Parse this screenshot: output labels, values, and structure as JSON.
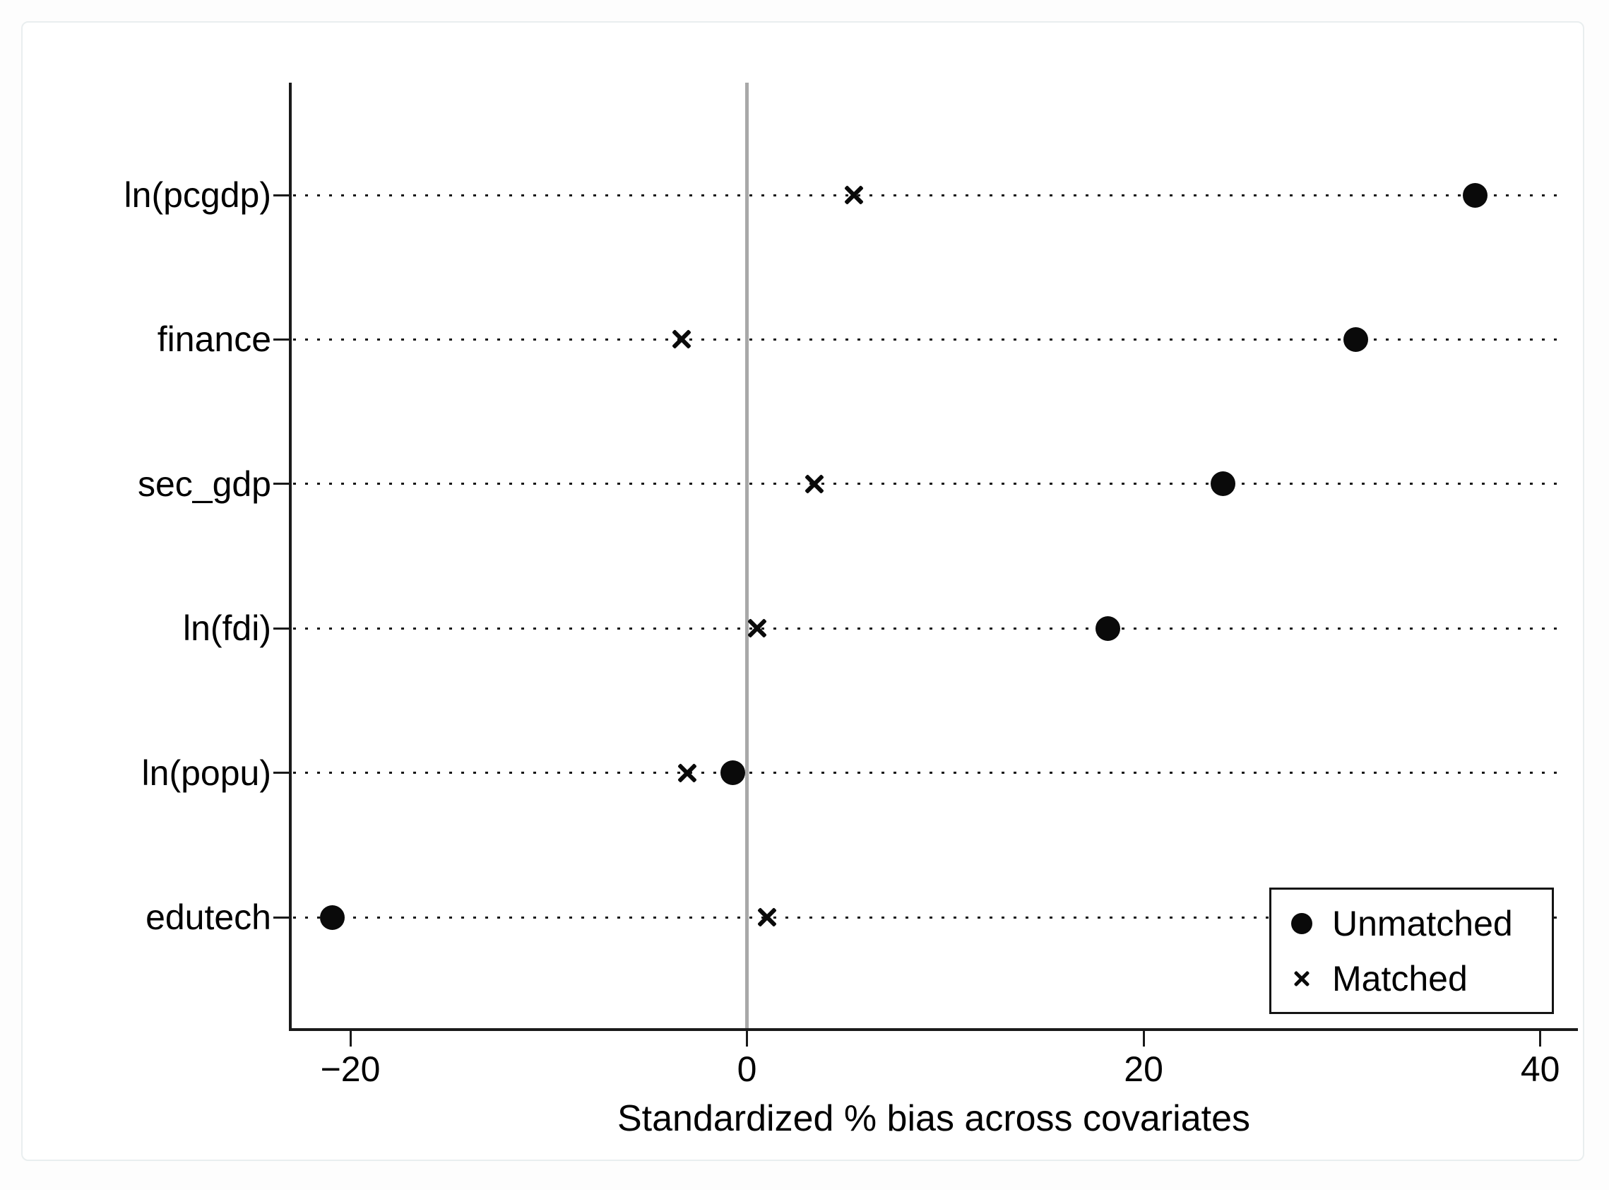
{
  "chart_data": {
    "type": "scatter",
    "title": "",
    "xlabel": "Standardized % bias across covariates",
    "ylabel": "",
    "categories": [
      "ln(pcgdp)",
      "finance",
      "sec_gdp",
      "ln(fdi)",
      "ln(popu)",
      "edutech"
    ],
    "series": [
      {
        "name": "Unmatched",
        "marker": "circle",
        "values": [
          36.7,
          30.7,
          24.0,
          18.2,
          -0.7,
          -20.9
        ]
      },
      {
        "name": "Matched",
        "marker": "x",
        "values": [
          5.4,
          -3.3,
          3.4,
          0.5,
          -3.0,
          1.0
        ]
      }
    ],
    "x_ticks": [
      -20,
      0,
      20,
      40
    ],
    "x_tick_labels": [
      "−20",
      "0",
      "20",
      "40"
    ],
    "xlim": [
      -23.1,
      41.9
    ],
    "reference_line_x": 0,
    "grid": "dotted-horizontal-leader-lines",
    "legend_position": "bottom-right",
    "legend_entries": [
      "Unmatched",
      "Matched"
    ]
  },
  "colors": {
    "marker": "#0a0a0a",
    "axis": "#1a1a1a",
    "zero_line": "#a8a8a8",
    "dotted_line": "#161616",
    "background": "#ffffff",
    "card_border": "#e9eeef"
  }
}
